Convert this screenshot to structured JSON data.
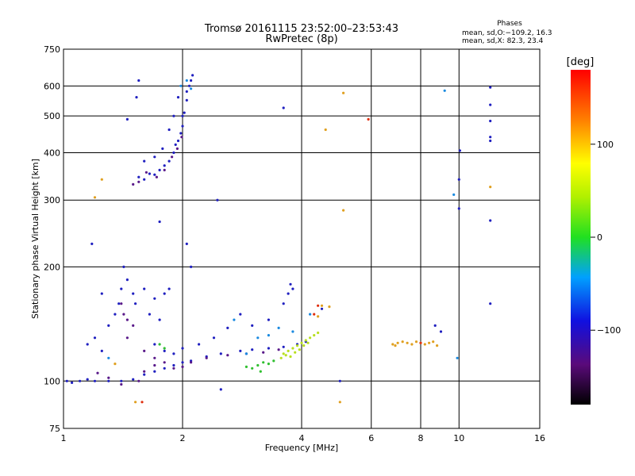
{
  "chart_data": {
    "type": "scatter",
    "title": "Tromsø 20161115 23:52:00–23:53:43",
    "subtitle": "RwPretec (8p)",
    "xlabel": "Frequency [MHz]",
    "ylabel": "Stationary phase Virtual Height [km]",
    "x_scale": "log",
    "y_scale": "log",
    "xlim": [
      1,
      16
    ],
    "ylim": [
      75,
      750
    ],
    "x_ticks": [
      1,
      2,
      4,
      6,
      8,
      10,
      16
    ],
    "x_tick_labels": [
      "1",
      "2",
      "4",
      "6",
      "8",
      "10",
      "16"
    ],
    "y_ticks": [
      75,
      100,
      200,
      300,
      400,
      500,
      600,
      750
    ],
    "y_tick_labels": [
      "75",
      "100",
      "200",
      "300",
      "400",
      "500",
      "600",
      "750"
    ],
    "grid": true,
    "phase_info": {
      "title": "Phases",
      "line1": "mean, sd,O:−109.2, 16.3",
      "line2": "mean, sd,X:  82.3, 23.4"
    },
    "colorbar": {
      "label": "[deg]",
      "range": [
        -180,
        180
      ],
      "ticks": [
        100,
        0,
        -100
      ],
      "tick_labels": [
        "100",
        "0",
        "−100"
      ]
    },
    "series": [
      {
        "color": "#2020c0",
        "points": [
          [
            1.02,
            100
          ],
          [
            1.05,
            99
          ],
          [
            1.1,
            100
          ],
          [
            1.15,
            101
          ],
          [
            1.2,
            100
          ],
          [
            1.3,
            100
          ],
          [
            1.4,
            100
          ],
          [
            1.5,
            101
          ],
          [
            1.6,
            104
          ],
          [
            1.7,
            106
          ],
          [
            1.8,
            108
          ],
          [
            1.9,
            110
          ],
          [
            2.0,
            112
          ],
          [
            2.1,
            113
          ],
          [
            2.3,
            116
          ],
          [
            2.5,
            118
          ],
          [
            2.8,
            120
          ],
          [
            3.0,
            121
          ],
          [
            3.3,
            122
          ],
          [
            3.6,
            123
          ],
          [
            3.9,
            125
          ],
          [
            4.1,
            127
          ],
          [
            1.15,
            125
          ],
          [
            1.2,
            130
          ],
          [
            1.25,
            120
          ],
          [
            1.3,
            140
          ],
          [
            1.35,
            150
          ],
          [
            1.38,
            160
          ],
          [
            1.4,
            175
          ],
          [
            1.42,
            200
          ],
          [
            1.45,
            185
          ],
          [
            1.5,
            170
          ],
          [
            1.52,
            160
          ],
          [
            1.6,
            175
          ],
          [
            1.65,
            150
          ],
          [
            1.7,
            165
          ],
          [
            1.75,
            145
          ],
          [
            1.8,
            170
          ],
          [
            1.85,
            175
          ],
          [
            1.7,
            125
          ],
          [
            1.8,
            120
          ],
          [
            1.9,
            118
          ],
          [
            2.0,
            122
          ],
          [
            2.2,
            125
          ],
          [
            2.4,
            130
          ],
          [
            2.6,
            138
          ],
          [
            2.8,
            150
          ],
          [
            3.0,
            140
          ],
          [
            3.3,
            145
          ],
          [
            3.6,
            160
          ],
          [
            3.7,
            170
          ],
          [
            3.75,
            180
          ],
          [
            3.8,
            175
          ],
          [
            1.55,
            345
          ],
          [
            1.6,
            340
          ],
          [
            1.65,
            352
          ],
          [
            1.7,
            350
          ],
          [
            1.75,
            360
          ],
          [
            1.8,
            370
          ],
          [
            1.85,
            380
          ],
          [
            1.9,
            400
          ],
          [
            1.95,
            430
          ],
          [
            2.0,
            470
          ],
          [
            2.02,
            510
          ],
          [
            2.05,
            550
          ],
          [
            2.08,
            600
          ],
          [
            2.1,
            620
          ],
          [
            2.12,
            640
          ],
          [
            2.05,
            580
          ],
          [
            2.0,
            500
          ],
          [
            1.98,
            450
          ],
          [
            1.92,
            420
          ],
          [
            1.6,
            380
          ],
          [
            1.7,
            390
          ],
          [
            1.78,
            410
          ],
          [
            1.85,
            460
          ],
          [
            1.9,
            500
          ],
          [
            1.95,
            560
          ],
          [
            1.55,
            620
          ],
          [
            1.53,
            560
          ],
          [
            1.45,
            490
          ],
          [
            1.75,
            263
          ],
          [
            2.45,
            300
          ],
          [
            3.6,
            525
          ],
          [
            4.5,
            155
          ],
          [
            5.0,
            100
          ],
          [
            8.7,
            140
          ],
          [
            9.0,
            135
          ],
          [
            10.0,
            285
          ],
          [
            10.05,
            405
          ],
          [
            10.0,
            340
          ],
          [
            12.0,
            535
          ],
          [
            12.0,
            485
          ],
          [
            12.0,
            440
          ],
          [
            12.0,
            430
          ],
          [
            12.0,
            265
          ],
          [
            12.0,
            160
          ],
          [
            12.0,
            595
          ],
          [
            1.25,
            170
          ],
          [
            1.18,
            230
          ],
          [
            2.05,
            230
          ],
          [
            2.1,
            200
          ],
          [
            2.5,
            95
          ]
        ]
      },
      {
        "color": "#5a1a8a",
        "points": [
          [
            1.22,
            105
          ],
          [
            1.3,
            102
          ],
          [
            1.4,
            98
          ],
          [
            1.55,
            100
          ],
          [
            1.6,
            106
          ],
          [
            1.7,
            110
          ],
          [
            1.8,
            112
          ],
          [
            1.9,
            108
          ],
          [
            2.0,
            109
          ],
          [
            2.1,
            112
          ],
          [
            2.3,
            115
          ],
          [
            2.6,
            117
          ],
          [
            2.9,
            118
          ],
          [
            3.2,
            119
          ],
          [
            3.5,
            121
          ],
          [
            1.4,
            160
          ],
          [
            1.42,
            150
          ],
          [
            1.45,
            145
          ],
          [
            1.5,
            140
          ],
          [
            1.45,
            130
          ],
          [
            1.6,
            120
          ],
          [
            1.7,
            115
          ],
          [
            1.5,
            330
          ],
          [
            1.55,
            335
          ],
          [
            1.62,
            355
          ],
          [
            1.72,
            345
          ],
          [
            1.8,
            360
          ],
          [
            1.88,
            390
          ],
          [
            1.94,
            410
          ],
          [
            1.99,
            440
          ]
        ]
      },
      {
        "color": "#1a8ae0",
        "points": [
          [
            2.1,
            590
          ],
          [
            2.05,
            620
          ],
          [
            1.98,
            600
          ],
          [
            3.3,
            132
          ],
          [
            3.5,
            138
          ],
          [
            3.8,
            135
          ],
          [
            4.2,
            150
          ],
          [
            2.7,
            145
          ],
          [
            3.1,
            130
          ],
          [
            9.2,
            583
          ],
          [
            9.7,
            310
          ],
          [
            9.9,
            115
          ],
          [
            1.3,
            115
          ],
          [
            2.9,
            118
          ]
        ]
      },
      {
        "color": "#b8e020",
        "points": [
          [
            3.6,
            118
          ],
          [
            3.7,
            120
          ],
          [
            3.8,
            122
          ],
          [
            3.9,
            124
          ],
          [
            4.0,
            126
          ],
          [
            4.1,
            128
          ],
          [
            4.2,
            130
          ],
          [
            3.75,
            116
          ],
          [
            3.85,
            119
          ],
          [
            3.95,
            121
          ],
          [
            4.05,
            124
          ],
          [
            4.15,
            126
          ],
          [
            3.65,
            117
          ],
          [
            3.55,
            115
          ],
          [
            4.3,
            132
          ],
          [
            4.4,
            134
          ]
        ]
      },
      {
        "color": "#30c030",
        "points": [
          [
            3.0,
            108
          ],
          [
            3.1,
            110
          ],
          [
            3.2,
            112
          ],
          [
            3.3,
            111
          ],
          [
            3.4,
            113
          ],
          [
            2.9,
            109
          ],
          [
            3.15,
            106
          ],
          [
            1.75,
            125
          ],
          [
            1.8,
            122
          ]
        ]
      },
      {
        "color": "#e0a020",
        "points": [
          [
            7.0,
            126
          ],
          [
            7.2,
            127
          ],
          [
            7.4,
            126
          ],
          [
            7.6,
            125
          ],
          [
            7.8,
            127
          ],
          [
            8.0,
            126
          ],
          [
            8.2,
            125
          ],
          [
            8.4,
            126
          ],
          [
            8.6,
            127
          ],
          [
            8.8,
            124
          ],
          [
            6.8,
            125
          ],
          [
            6.9,
            124
          ],
          [
            4.5,
            158
          ],
          [
            4.7,
            157
          ],
          [
            4.4,
            148
          ],
          [
            4.6,
            460
          ],
          [
            5.1,
            575
          ],
          [
            5.1,
            282
          ],
          [
            12.0,
            325
          ],
          [
            1.25,
            340
          ],
          [
            1.2,
            305
          ],
          [
            1.35,
            111
          ],
          [
            1.52,
            88
          ],
          [
            5.0,
            88
          ]
        ]
      },
      {
        "color": "#e03010",
        "points": [
          [
            4.4,
            158
          ],
          [
            4.3,
            150
          ],
          [
            5.9,
            490
          ],
          [
            1.58,
            88
          ],
          [
            8.0,
            126
          ]
        ]
      }
    ]
  }
}
